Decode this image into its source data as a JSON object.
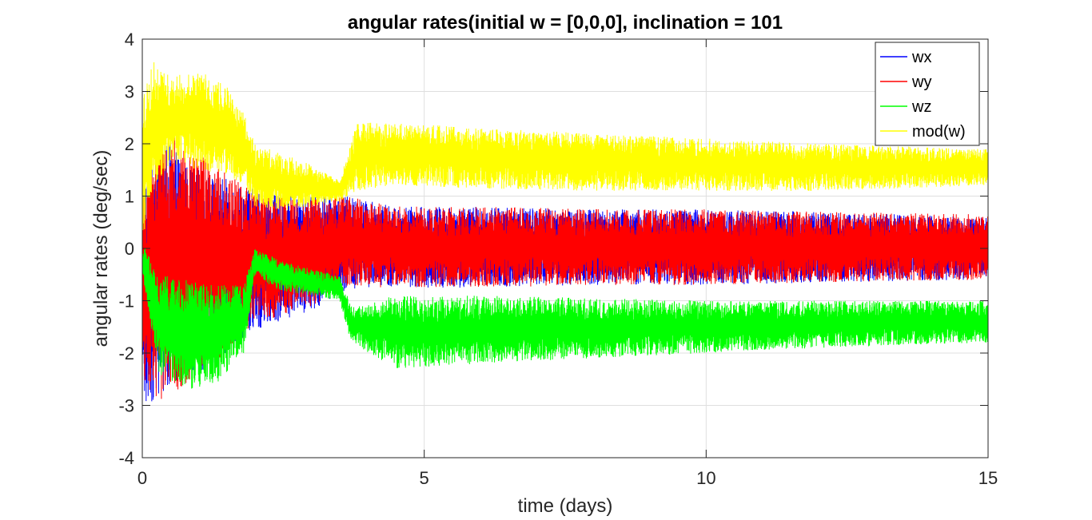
{
  "chart_data": {
    "type": "line",
    "title": "angular rates(initial w = [0,0,0], inclination = 101",
    "xlabel": "time (days)",
    "ylabel": "angular rates (deg/sec)",
    "xlim": [
      0,
      15
    ],
    "ylim": [
      -4,
      4
    ],
    "xticks": [
      0,
      5,
      10,
      15
    ],
    "yticks": [
      -4,
      -3,
      -2,
      -1,
      0,
      1,
      2,
      3,
      4
    ],
    "grid": true,
    "legend_position": "top-right",
    "series": [
      {
        "name": "wx",
        "color": "#0000ff",
        "envelope": {
          "x": [
            0,
            0.3,
            0.8,
            1.3,
            1.8,
            2.4,
            3.0,
            3.6,
            4.5,
            6,
            8,
            10,
            12,
            15
          ],
          "lo": [
            -3.1,
            -2.8,
            -2.5,
            -2.2,
            -1.7,
            -1.4,
            -1.2,
            -0.8,
            -0.75,
            -0.75,
            -0.7,
            -0.7,
            -0.65,
            -0.6
          ],
          "hi": [
            1.2,
            2.2,
            1.6,
            1.4,
            1.2,
            1.0,
            1.0,
            1.0,
            0.8,
            0.8,
            0.75,
            0.75,
            0.7,
            0.6
          ]
        }
      },
      {
        "name": "wy",
        "color": "#ff0000",
        "envelope": {
          "x": [
            0,
            0.3,
            0.8,
            1.3,
            1.8,
            2.4,
            3.0,
            3.6,
            4.5,
            6,
            8,
            10,
            12,
            15
          ],
          "lo": [
            -2.7,
            -2.9,
            -2.6,
            -2.2,
            -1.6,
            -1.3,
            -1.1,
            -0.75,
            -0.75,
            -0.75,
            -0.7,
            -0.7,
            -0.65,
            -0.6
          ],
          "hi": [
            1.5,
            2.3,
            2.0,
            1.6,
            1.2,
            1.0,
            0.95,
            1.0,
            0.8,
            0.8,
            0.75,
            0.75,
            0.7,
            0.65
          ]
        }
      },
      {
        "name": "wz",
        "color": "#00ff00",
        "envelope": {
          "x": [
            0,
            0.3,
            0.8,
            1.3,
            1.8,
            2.0,
            2.4,
            3.0,
            3.5,
            3.7,
            4.5,
            6,
            8,
            10,
            12,
            15
          ],
          "lo": [
            -0.5,
            -2.4,
            -2.7,
            -2.6,
            -2.0,
            -0.5,
            -0.8,
            -0.9,
            -1.0,
            -1.8,
            -2.3,
            -2.2,
            -2.1,
            -2.0,
            -1.9,
            -1.8
          ],
          "hi": [
            0.1,
            -0.5,
            -0.6,
            -0.7,
            -0.7,
            0.0,
            -0.2,
            -0.4,
            -0.5,
            -1.1,
            -0.9,
            -0.9,
            -0.95,
            -1.0,
            -1.0,
            -1.0
          ]
        }
      },
      {
        "name": "mod(w)",
        "color": "#ffff00",
        "envelope": {
          "x": [
            0,
            0.2,
            0.5,
            1.0,
            1.5,
            1.8,
            2.0,
            2.5,
            3.0,
            3.5,
            3.8,
            4.5,
            6,
            8,
            10,
            12,
            15
          ],
          "lo": [
            0.0,
            1.2,
            1.6,
            1.5,
            1.4,
            1.2,
            0.8,
            0.7,
            0.8,
            0.9,
            1.1,
            1.2,
            1.15,
            1.1,
            1.1,
            1.1,
            1.2
          ],
          "hi": [
            3.0,
            3.6,
            3.3,
            3.4,
            3.1,
            2.6,
            2.0,
            1.8,
            1.6,
            1.3,
            2.4,
            2.4,
            2.3,
            2.2,
            2.1,
            2.0,
            1.9
          ]
        }
      }
    ]
  }
}
